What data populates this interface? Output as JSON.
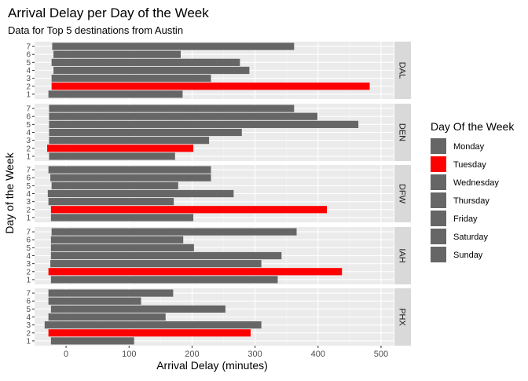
{
  "chart_data": {
    "type": "bar",
    "orientation": "horizontal",
    "title": "Arrival Delay per Day of the Week",
    "subtitle": "Data for Top 5 destinations from Austin",
    "xlabel": "Arrival Delay (minutes)",
    "ylabel": "Day of the Week",
    "xlim": [
      -50,
      520
    ],
    "xticks": [
      0,
      100,
      200,
      300,
      400,
      500
    ],
    "categories": [
      "1",
      "2",
      "3",
      "4",
      "5",
      "6",
      "7"
    ],
    "grid": true,
    "legend": {
      "title": "Day Of the Week",
      "position": "right",
      "entries": [
        {
          "label": "Monday",
          "color": "#666666"
        },
        {
          "label": "Tuesday",
          "color": "#ff0000"
        },
        {
          "label": "Wednesday",
          "color": "#666666"
        },
        {
          "label": "Thursday",
          "color": "#666666"
        },
        {
          "label": "Friday",
          "color": "#666666"
        },
        {
          "label": "Saturday",
          "color": "#666666"
        },
        {
          "label": "Sunday",
          "color": "#666666"
        }
      ]
    },
    "facets": [
      {
        "name": "DAL",
        "bars": [
          {
            "day": "1",
            "xmin": -28,
            "xmax": 185
          },
          {
            "day": "2",
            "xmin": -23,
            "xmax": 482
          },
          {
            "day": "3",
            "xmin": -23,
            "xmax": 230
          },
          {
            "day": "4",
            "xmin": -20,
            "xmax": 291
          },
          {
            "day": "5",
            "xmin": -23,
            "xmax": 276
          },
          {
            "day": "6",
            "xmin": -20,
            "xmax": 182
          },
          {
            "day": "7",
            "xmin": -22,
            "xmax": 362
          }
        ]
      },
      {
        "name": "DEN",
        "bars": [
          {
            "day": "1",
            "xmin": -27,
            "xmax": 173
          },
          {
            "day": "2",
            "xmin": -30,
            "xmax": 202
          },
          {
            "day": "3",
            "xmin": -27,
            "xmax": 227
          },
          {
            "day": "4",
            "xmin": -27,
            "xmax": 279
          },
          {
            "day": "5",
            "xmin": -27,
            "xmax": 464
          },
          {
            "day": "6",
            "xmin": -27,
            "xmax": 399
          },
          {
            "day": "7",
            "xmin": -27,
            "xmax": 362
          }
        ]
      },
      {
        "name": "DFW",
        "bars": [
          {
            "day": "1",
            "xmin": -24,
            "xmax": 202
          },
          {
            "day": "2",
            "xmin": -24,
            "xmax": 414
          },
          {
            "day": "3",
            "xmin": -28,
            "xmax": 171
          },
          {
            "day": "4",
            "xmin": -29,
            "xmax": 266
          },
          {
            "day": "5",
            "xmin": -23,
            "xmax": 178
          },
          {
            "day": "6",
            "xmin": -25,
            "xmax": 230
          },
          {
            "day": "7",
            "xmin": -28,
            "xmax": 230
          }
        ]
      },
      {
        "name": "IAH",
        "bars": [
          {
            "day": "1",
            "xmin": -24,
            "xmax": 336
          },
          {
            "day": "2",
            "xmin": -28,
            "xmax": 438
          },
          {
            "day": "3",
            "xmin": -25,
            "xmax": 310
          },
          {
            "day": "4",
            "xmin": -24,
            "xmax": 342
          },
          {
            "day": "5",
            "xmin": -24,
            "xmax": 203
          },
          {
            "day": "6",
            "xmin": -24,
            "xmax": 186
          },
          {
            "day": "7",
            "xmin": -23,
            "xmax": 366
          }
        ]
      },
      {
        "name": "PHX",
        "bars": [
          {
            "day": "1",
            "xmin": -24,
            "xmax": 108
          },
          {
            "day": "2",
            "xmin": -28,
            "xmax": 293
          },
          {
            "day": "3",
            "xmin": -34,
            "xmax": 310
          },
          {
            "day": "4",
            "xmin": -28,
            "xmax": 158
          },
          {
            "day": "5",
            "xmin": -24,
            "xmax": 253
          },
          {
            "day": "6",
            "xmin": -28,
            "xmax": 119
          },
          {
            "day": "7",
            "xmin": -28,
            "xmax": 170
          }
        ]
      }
    ]
  }
}
